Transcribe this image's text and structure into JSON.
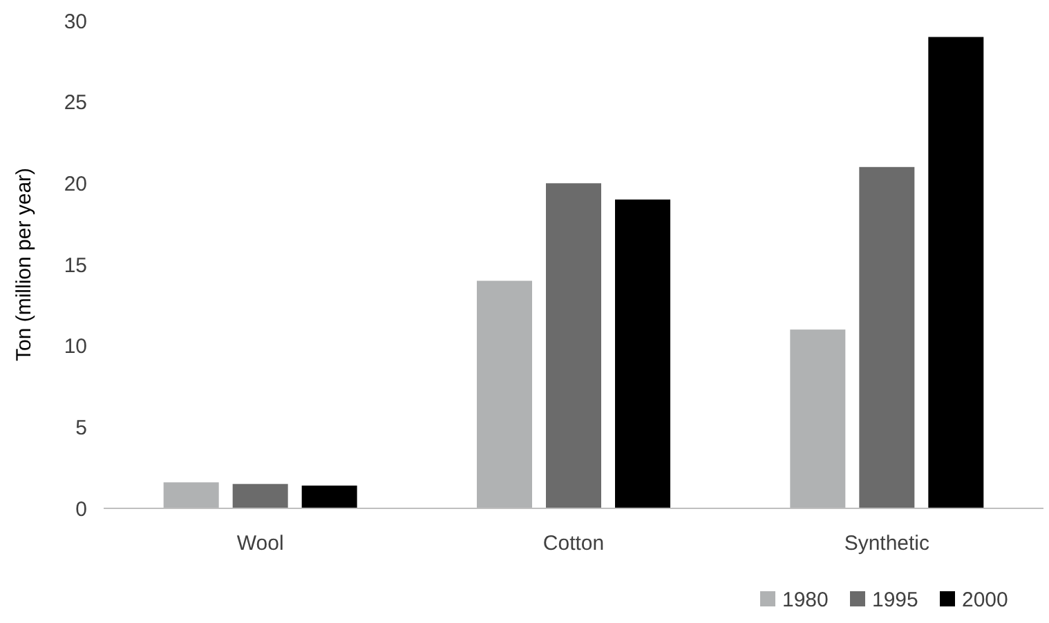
{
  "chart_data": {
    "type": "bar",
    "ylabel": "Ton (million per year)",
    "categories": [
      "Wool",
      "Cotton",
      "Synthetic"
    ],
    "series": [
      {
        "name": "1980",
        "color": "#b0b2b3",
        "values": [
          1.6,
          14,
          11
        ]
      },
      {
        "name": "1995",
        "color": "#6b6b6b",
        "values": [
          1.5,
          20,
          21
        ]
      },
      {
        "name": "2000",
        "color": "#000000",
        "values": [
          1.4,
          19,
          29
        ]
      }
    ],
    "ylim": [
      0,
      30
    ],
    "yticks": [
      0,
      5,
      10,
      15,
      20,
      25,
      30
    ],
    "grid": false,
    "legend": "bottom right"
  }
}
